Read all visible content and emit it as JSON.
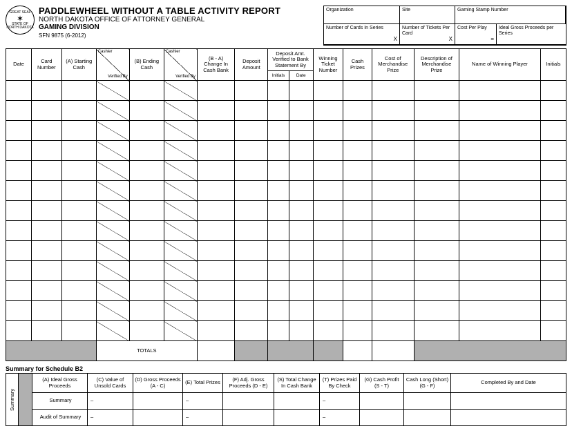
{
  "header": {
    "title": "PADDLEWHEEL WITHOUT A TABLE ACTIVITY REPORT",
    "line2": "NORTH DAKOTA OFFICE OF ATTORNEY GENERAL",
    "line3": "GAMING DIVISION",
    "form_id": "SFN 9875 (6-2012)",
    "seal_top": "GREAT SEAL",
    "seal_bot": "STATE OF NORTH DAKOTA"
  },
  "info": {
    "organization": "Organization",
    "site": "Site",
    "stamp": "Gaming Stamp Number",
    "num_cards": "Number of Cards In Series",
    "tickets_per_card": "Number of Tickets Per Card",
    "cost_per_play": "Cost Per Play",
    "ideal_gross": "Ideal Gross Proceeds per Series",
    "x": "X",
    "eq": "="
  },
  "main_columns": {
    "date": "Date",
    "card_number": "Card Number",
    "starting_cash": "(A) Starting Cash",
    "ending_cash": "(B) Ending Cash",
    "cashier": "Cashier",
    "verified_by": "Verified By",
    "change": "(B - A) Change In Cash Bank",
    "deposit": "Deposit Amount",
    "deposit_verified": "Deposit Amt. Verified to Bank Statement By",
    "dv_initials": "Initials",
    "dv_date": "Date",
    "winning_ticket": "Winning Ticket Number",
    "cash_prizes": "Cash Prizes",
    "cost_merch": "Cost of Merchandise Prize",
    "desc_merch": "Description of Merchandise Prize",
    "name_winner": "Name of Winning Player",
    "initials": "Initials",
    "totals": "TOTALS"
  },
  "summary": {
    "caption": "Summary for Schedule B2",
    "vert_label": "Summary",
    "cols": {
      "a": "(A) Ideal Gross Proceeds",
      "c": "(C) Value of Unsold Cards",
      "d": "(D) Gross Proceeds (A - C)",
      "e": "(E) Total Prizes",
      "f": "(F) Adj. Gross Proceeds (D - E)",
      "s": "(S) Total Change In Cash Bank",
      "t": "(T) Prizes Paid By Check",
      "g": "(G) Cash Profit (S - T)",
      "cashlong": "Cash Long (Short) (G - F)",
      "completed": "Completed By and Date"
    },
    "rows": {
      "summary": "Summary",
      "audit": "Audit of Summary"
    },
    "dash": "–"
  },
  "layout": {
    "data_rows": 13,
    "colors": {
      "shade": "#b0b0b0",
      "border": "#000000",
      "bg": "#ffffff"
    }
  }
}
